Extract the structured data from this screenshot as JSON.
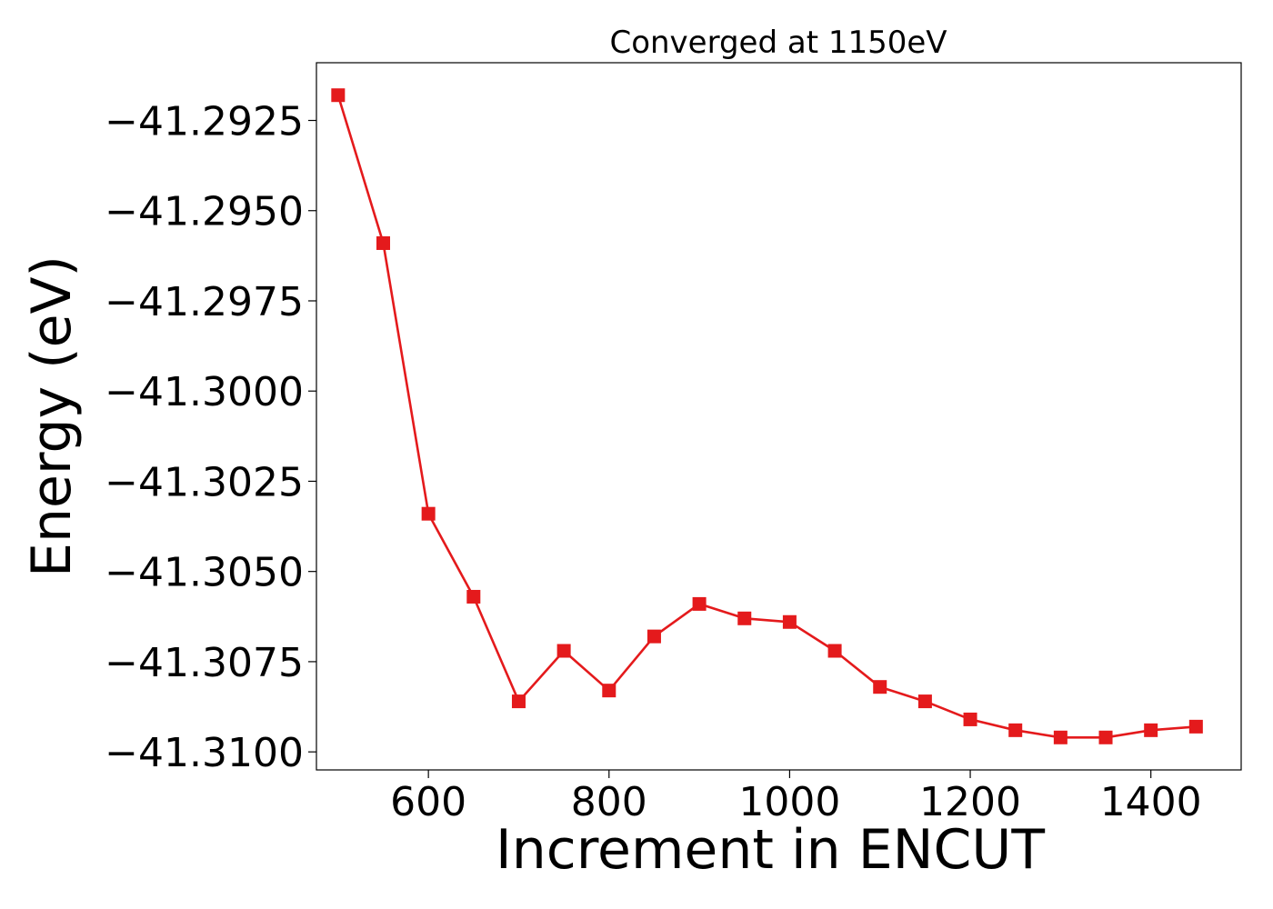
{
  "chart_data": {
    "type": "line",
    "title": "Converged at 1150eV",
    "xlabel": "Increment in ENCUT",
    "ylabel": "Energy (eV)",
    "x": [
      500,
      550,
      600,
      650,
      700,
      750,
      800,
      850,
      900,
      950,
      1000,
      1050,
      1100,
      1150,
      1200,
      1250,
      1300,
      1350,
      1400,
      1450
    ],
    "series": [
      {
        "values": [
          -41.2918,
          -41.2959,
          -41.3034,
          -41.3057,
          -41.3086,
          -41.3072,
          -41.3083,
          -41.3068,
          -41.3059,
          -41.3063,
          -41.3064,
          -41.3072,
          -41.3082,
          -41.3086,
          -41.3091,
          -41.3094,
          -41.3096,
          -41.3096,
          -41.3094,
          -41.3093
        ],
        "color": "#e41a1c",
        "marker": "square"
      }
    ],
    "xlim": [
      476,
      1500
    ],
    "ylim": [
      -41.3105,
      -41.2909
    ],
    "xticks": [
      600,
      800,
      1000,
      1200,
      1400
    ],
    "xtick_labels": [
      "600",
      "800",
      "1000",
      "1200",
      "1400"
    ],
    "yticks": [
      -41.2925,
      -41.295,
      -41.2975,
      -41.3,
      -41.3025,
      -41.305,
      -41.3075,
      -41.31
    ],
    "ytick_labels": [
      "−41.2925",
      "−41.2950",
      "−41.2975",
      "−41.3000",
      "−41.3025",
      "−41.3050",
      "−41.3075",
      "−41.3100"
    ],
    "grid": false
  }
}
